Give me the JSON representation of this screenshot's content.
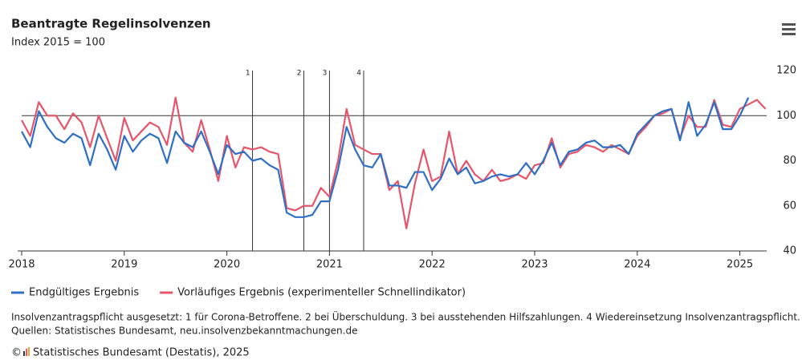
{
  "chart_data": {
    "type": "line",
    "title": "Beantragte Regelinsolvenzen",
    "subtitle": "Index 2015 = 100",
    "categories": [
      "2018",
      null,
      null,
      null,
      null,
      null,
      null,
      null,
      null,
      null,
      null,
      null,
      "2019",
      null,
      null,
      null,
      null,
      null,
      null,
      null,
      null,
      null,
      null,
      null,
      "2020",
      null,
      null,
      null,
      null,
      null,
      null,
      null,
      null,
      null,
      null,
      null,
      "2021",
      null,
      null,
      null,
      null,
      null,
      null,
      null,
      null,
      null,
      null,
      null,
      "2022",
      null,
      null,
      null,
      null,
      null,
      null,
      null,
      null,
      null,
      null,
      null,
      "2023",
      null,
      null,
      null,
      null,
      null,
      null,
      null,
      null,
      null,
      null,
      null,
      "2024",
      null,
      null,
      null,
      null,
      null,
      null,
      null,
      null,
      null,
      null,
      null,
      "2025",
      null,
      null,
      null
    ],
    "series": [
      {
        "name": "Endgültiges Ergebnis",
        "color": "#2f6fc4",
        "values": [
          93,
          86,
          102,
          95,
          90,
          88,
          92,
          90,
          78,
          92,
          85,
          76,
          91,
          84,
          89,
          92,
          90,
          79,
          93,
          88,
          86,
          93,
          84,
          74,
          87,
          83,
          84,
          80,
          81,
          78,
          76,
          57,
          55,
          55,
          56,
          62,
          62,
          76,
          95,
          85,
          78,
          77,
          83,
          69,
          69,
          68,
          75,
          75,
          67,
          72,
          81,
          74,
          77,
          70,
          71,
          73,
          74,
          73,
          74,
          79,
          74,
          80,
          88,
          78,
          84,
          85,
          88,
          89,
          86,
          86,
          87,
          83,
          92,
          96,
          100,
          102,
          103,
          89,
          106,
          91,
          96,
          106,
          94,
          94,
          100,
          108,
          null,
          null
        ]
      },
      {
        "name": "Vorläufiges Ergebnis (experimenteller Schnellindikator)",
        "color": "#e5566b",
        "values": [
          98,
          91,
          106,
          100,
          100,
          94,
          101,
          97,
          86,
          100,
          90,
          80,
          99,
          89,
          93,
          97,
          95,
          87,
          108,
          88,
          84,
          98,
          85,
          71,
          91,
          77,
          86,
          85,
          86,
          84,
          83,
          59,
          58,
          60,
          60,
          68,
          64,
          80,
          103,
          87,
          85,
          83,
          83,
          67,
          71,
          50,
          70,
          85,
          71,
          73,
          93,
          74,
          80,
          74,
          71,
          76,
          71,
          72,
          74,
          72,
          78,
          79,
          90,
          77,
          83,
          84,
          87,
          86,
          84,
          87,
          85,
          83,
          91,
          95,
          100,
          101,
          103,
          90,
          100,
          95,
          95,
          107,
          96,
          95,
          103,
          105,
          107,
          103
        ]
      }
    ],
    "ylim": [
      40,
      120
    ],
    "yticks": [
      40,
      60,
      80,
      100,
      120
    ],
    "reference_line": 100,
    "annotations": [
      {
        "label": "1",
        "index": 27
      },
      {
        "label": "2",
        "index": 33
      },
      {
        "label": "3",
        "index": 36
      },
      {
        "label": "4",
        "index": 40
      }
    ],
    "legend": "bottom-left",
    "note": "Insolvenzantragspflicht ausgesetzt: 1 für Corona-Betroffene. 2 bei Überschuldung. 3 bei ausstehenden Hilfszahlungen. 4 Wiedereinsetzung Insolvenzantragspflicht.",
    "source": "Quellen: Statistisches Bundesamt, neu.insolvenzbekanntmachungen.de",
    "copyright": "Statistisches Bundesamt (Destatis), 2025"
  }
}
